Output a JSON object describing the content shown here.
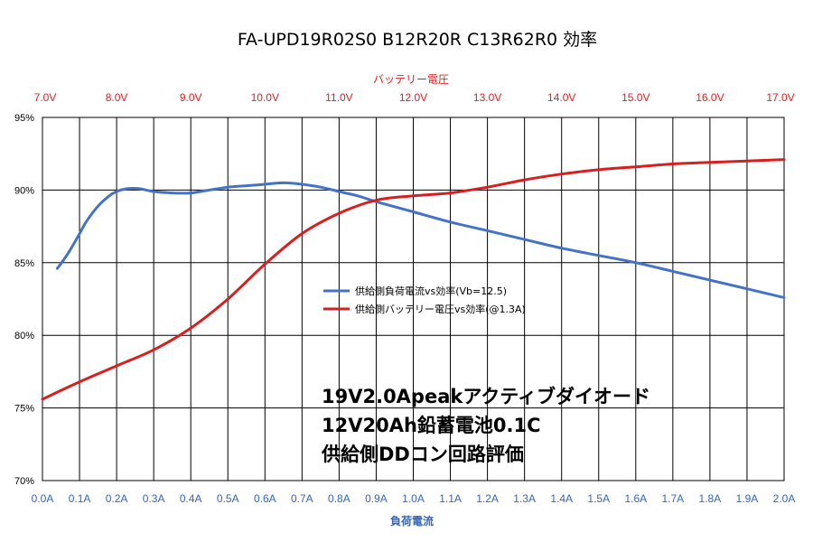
{
  "chart_data": {
    "type": "line",
    "title": "FA-UPD19R02S0 B12R20R C13R62R0 効率",
    "x_bottom": {
      "label": "負荷電流",
      "ticks": [
        "0.0A",
        "0.1A",
        "0.2A",
        "0.3A",
        "0.4A",
        "0.5A",
        "0.6A",
        "0.7A",
        "0.8A",
        "0.9A",
        "1.0A",
        "1.1A",
        "1.2A",
        "1.3A",
        "1.4A",
        "1.5A",
        "1.6A",
        "1.7A",
        "1.8A",
        "1.9A",
        "2.0A"
      ],
      "range": [
        0.0,
        2.0
      ],
      "color": "#3366bb"
    },
    "x_top": {
      "label": "バッテリー電圧",
      "ticks": [
        "7.0V",
        "8.0V",
        "9.0V",
        "10.0V",
        "11.0V",
        "12.0V",
        "13.0V",
        "14.0V",
        "15.0V",
        "16.0V",
        "17.0V"
      ],
      "range": [
        7.0,
        17.0
      ],
      "color": "#e02020"
    },
    "y": {
      "ticks": [
        "70%",
        "75%",
        "80%",
        "85%",
        "90%",
        "95%"
      ],
      "range": [
        70,
        95
      ]
    },
    "grid": true,
    "legend_position": "center",
    "series": [
      {
        "name": "供給側負荷電流vs効率(Vb=12.5)",
        "axis": "bottom",
        "color": "#4472c4",
        "x": [
          0.04,
          0.06,
          0.08,
          0.1,
          0.12,
          0.15,
          0.18,
          0.2,
          0.23,
          0.26,
          0.3,
          0.35,
          0.4,
          0.45,
          0.5,
          0.55,
          0.6,
          0.65,
          0.7,
          0.75,
          0.8,
          0.85,
          0.9,
          1.0,
          1.1,
          1.2,
          1.3,
          1.4,
          1.5,
          1.6,
          1.7,
          1.8,
          1.9,
          2.0
        ],
        "y": [
          84.6,
          85.3,
          86.1,
          87.0,
          87.9,
          88.9,
          89.6,
          89.9,
          90.1,
          90.1,
          89.9,
          89.8,
          89.8,
          90.0,
          90.2,
          90.3,
          90.4,
          90.5,
          90.4,
          90.2,
          89.9,
          89.6,
          89.2,
          88.5,
          87.8,
          87.2,
          86.6,
          86.0,
          85.5,
          85.0,
          84.4,
          83.8,
          83.2,
          82.6
        ]
      },
      {
        "name": "供給側バッテリー電圧vs効率(@1.3A)",
        "axis": "top",
        "color": "#d62020",
        "x": [
          7.0,
          7.5,
          8.0,
          8.5,
          9.0,
          9.5,
          10.0,
          10.5,
          11.0,
          11.5,
          12.0,
          12.5,
          13.0,
          13.5,
          14.0,
          14.5,
          15.0,
          15.5,
          16.0,
          16.5,
          17.0
        ],
        "y": [
          75.6,
          76.8,
          77.9,
          79.0,
          80.5,
          82.5,
          84.9,
          87.0,
          88.4,
          89.3,
          89.6,
          89.8,
          90.2,
          90.7,
          91.1,
          91.4,
          91.6,
          91.8,
          91.9,
          92.0,
          92.1
        ]
      }
    ],
    "annotations": [
      "19V2.0Apeakアクティブダイオード",
      "12V20Ah鉛蓄電池0.1C",
      "供給側DDコン回路評価"
    ]
  }
}
